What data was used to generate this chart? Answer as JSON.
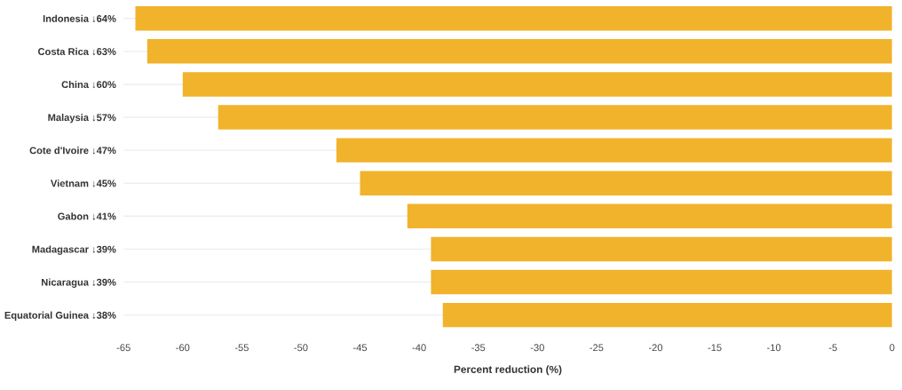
{
  "chart_data": {
    "type": "bar",
    "orientation": "horizontal",
    "categories": [
      "Indonesia ↓64%",
      "Costa Rica ↓63%",
      "China ↓60%",
      "Malaysia ↓57%",
      "Cote d'Ivoire ↓47%",
      "Vietnam ↓45%",
      "Gabon ↓41%",
      "Madagascar ↓39%",
      "Nicaragua ↓39%",
      "Equatorial Guinea ↓38%"
    ],
    "values": [
      -64,
      -63,
      -60,
      -57,
      -47,
      -45,
      -41,
      -39,
      -39,
      -38
    ],
    "color": "#f0b32b",
    "xlabel": "Percent reduction (%)",
    "xlim": [
      -65,
      0
    ],
    "xticks": [
      -65,
      -60,
      -55,
      -50,
      -45,
      -40,
      -35,
      -30,
      -25,
      -20,
      -15,
      -10,
      -5,
      0
    ],
    "grid": "y"
  }
}
